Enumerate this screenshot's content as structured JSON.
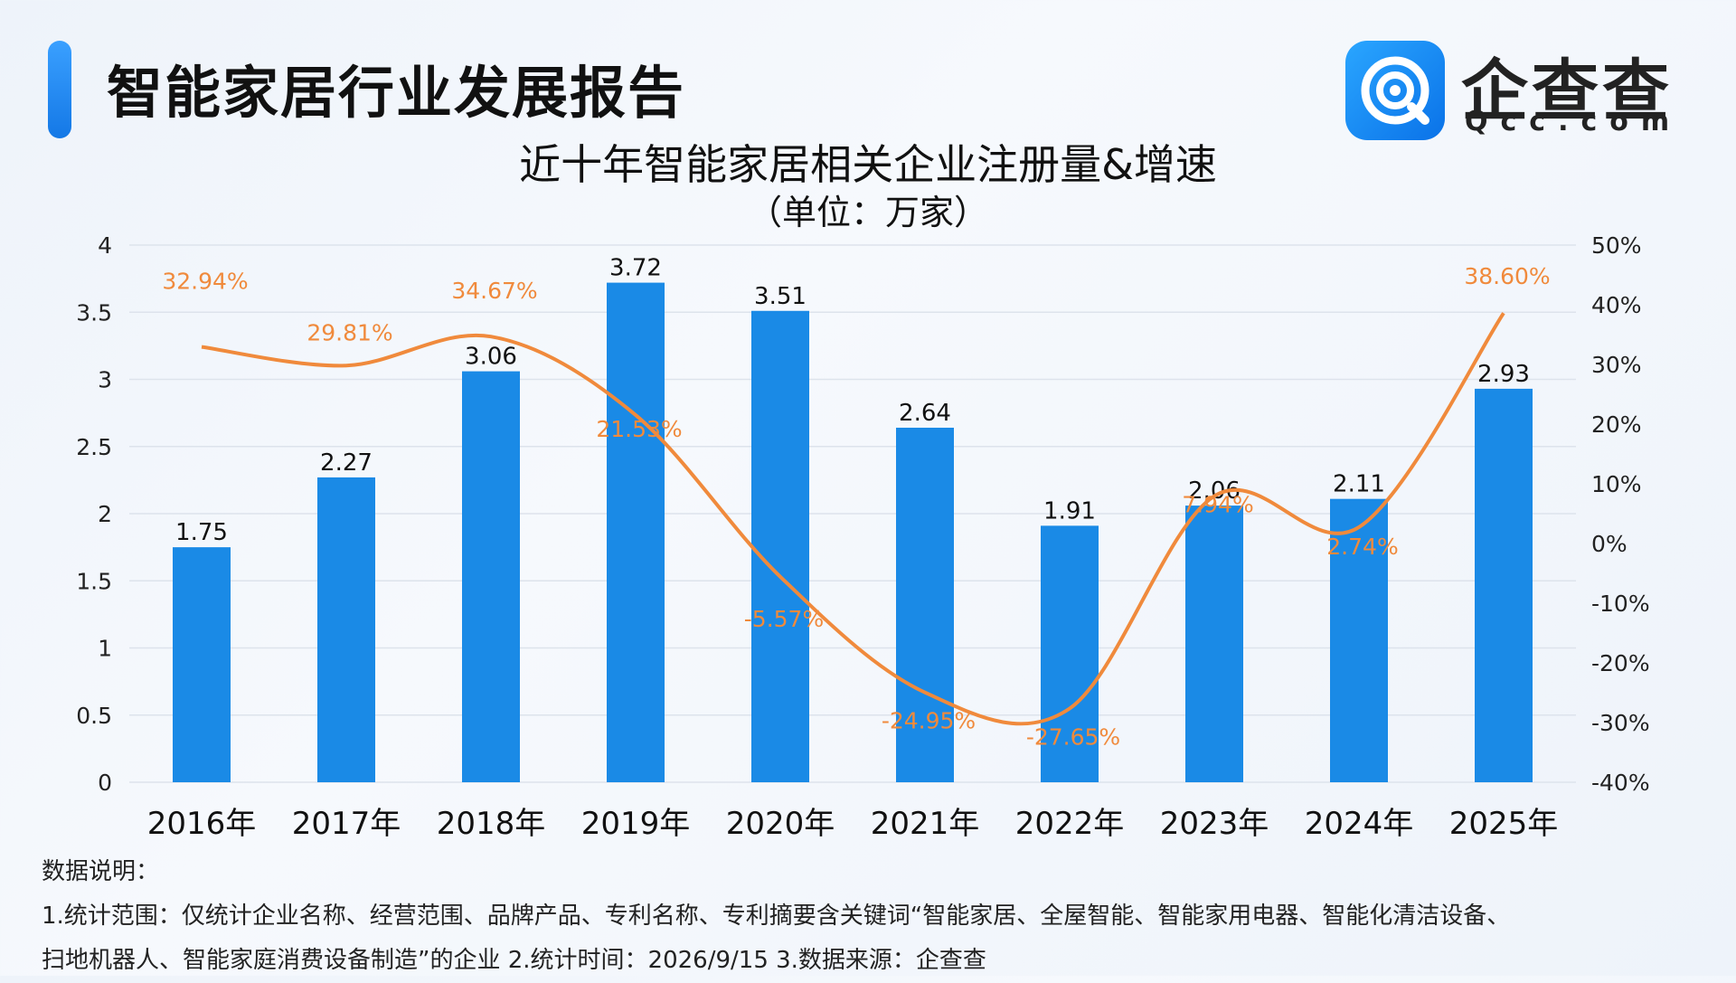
{
  "header": {
    "title": "智能家居行业发展报告",
    "logo_cn": "企查查",
    "logo_en": "Qcc.com"
  },
  "colors": {
    "bar": "#1a8ae6",
    "line": "#f08a3c",
    "grid": "#dde3ec",
    "accent": "#1478e6"
  },
  "chart_data": {
    "type": "bar",
    "title": "近十年智能家居相关企业注册量&增速",
    "subtitle": "（单位：万家）",
    "categories": [
      "2016年",
      "2017年",
      "2018年",
      "2019年",
      "2020年",
      "2021年",
      "2022年",
      "2023年",
      "2024年",
      "2025年"
    ],
    "series": [
      {
        "type": "bar",
        "axis": "left",
        "values": [
          1.75,
          2.27,
          3.06,
          3.72,
          3.51,
          2.64,
          1.91,
          2.06,
          2.11,
          2.93
        ],
        "value_labels": [
          "1.75",
          "2.27",
          "3.06",
          "3.72",
          "3.51",
          "2.64",
          "1.91",
          "2.06",
          "2.11",
          "2.93"
        ]
      },
      {
        "type": "line",
        "axis": "right",
        "values": [
          32.94,
          29.81,
          34.67,
          21.53,
          -5.57,
          -24.95,
          -27.65,
          7.94,
          2.74,
          38.6
        ],
        "value_labels": [
          "32.94%",
          "29.81%",
          "34.67%",
          "21.53%",
          "-5.57%",
          "-24.95%",
          "-27.65%",
          "7.94%",
          "2.74%",
          "38.60%"
        ]
      }
    ],
    "y_left": {
      "lim": [
        0,
        4
      ],
      "ticks": [
        0,
        0.5,
        1,
        1.5,
        2,
        2.5,
        3,
        3.5,
        4
      ],
      "tick_labels": [
        "0",
        "0.5",
        "1",
        "1.5",
        "2",
        "2.5",
        "3",
        "3.5",
        "4"
      ]
    },
    "y_right": {
      "lim": [
        -40,
        50
      ],
      "ticks": [
        -40,
        -30,
        -20,
        -10,
        0,
        10,
        20,
        30,
        40,
        50
      ],
      "tick_labels": [
        "-40%",
        "-30%",
        "-20%",
        "-10%",
        "0%",
        "10%",
        "20%",
        "30%",
        "40%",
        "50%"
      ]
    },
    "grid": true,
    "legend": "none"
  },
  "notes": {
    "heading": "数据说明：",
    "line1": "1.统计范围：仅统计企业名称、经营范围、品牌产品、专利名称、专利摘要含关键词“智能家居、全屋智能、智能家用电器、智能化清洁设备、",
    "line2": "扫地机器人、智能家庭消费设备制造”的企业 2.统计时间：2026/9/15 3.数据来源：企查查"
  }
}
